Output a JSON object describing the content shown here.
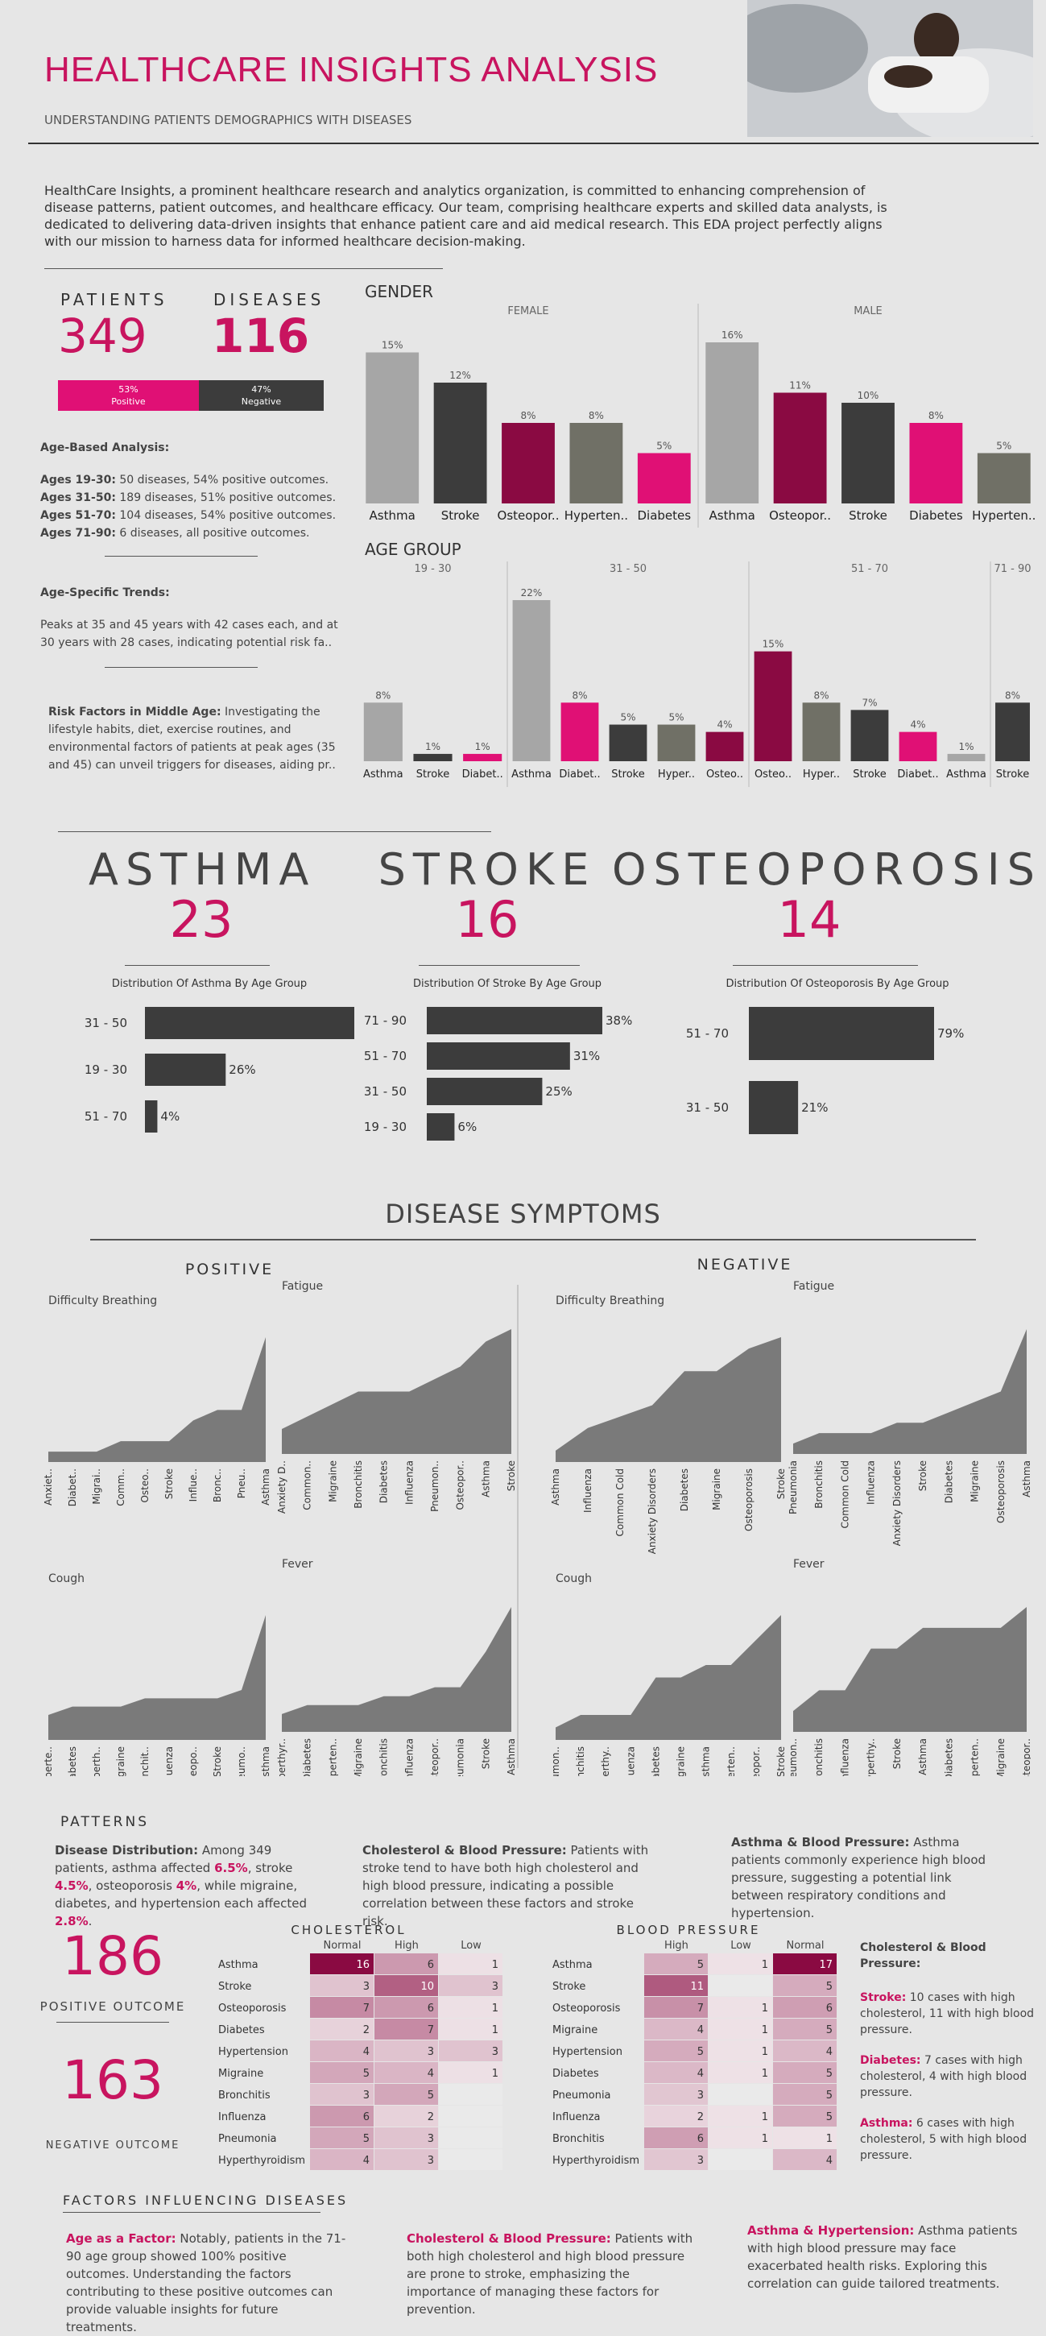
{
  "title": "HEALTHCARE INSIGHTS ANALYSIS",
  "subtitle": "UNDERSTANDING PATIENTS DEMOGRAPHICS WITH DISEASES",
  "intro": "HealthCare Insights, a prominent healthcare research and analytics organization, is committed to enhancing comprehension of disease patterns, patient outcomes, and healthcare efficacy. Our team, comprising healthcare experts and skilled data analysts, is dedicated to delivering data-driven insights that enhance patient care and aid medical research. This EDA project perfectly aligns with our mission to harness data for informed healthcare decision-making.",
  "kpis": {
    "patients_label": "PATIENTS",
    "patients_value": "349",
    "diseases_label": "DISEASES",
    "diseases_value": "116",
    "positive_pct": "53%",
    "positive_label": "Positive",
    "negative_pct": "47%",
    "negative_label": "Negative",
    "positive_share": 0.53
  },
  "age_analysis": {
    "heading": "Age-Based Analysis:",
    "lines": [
      {
        "label": "Ages 19-30:",
        "text": " 50 diseases, 54% positive outcomes."
      },
      {
        "label": "Ages 31-50:",
        "text": " 189 diseases, 51% positive outcomes."
      },
      {
        "label": "Ages 51-70:",
        "text": " 104 diseases, 54% positive outcomes."
      },
      {
        "label": "Ages 71-90:",
        "text": " 6 diseases, all positive outcomes."
      }
    ]
  },
  "age_trends": {
    "heading": "Age-Specific Trends:",
    "line1": "Peaks at 35 and 45 years with 42 cases each, and at",
    "line2": "30 years with 28 cases, indicating potential risk fa.."
  },
  "risk_factors": {
    "label": "Risk Factors in Middle Age:",
    "text1": " Investigating the",
    "line2": "lifestyle habits, diet, exercise routines, and",
    "line3": "environmental factors of patients at peak ages (35",
    "line4": "and 45) can unveil triggers for diseases, aiding pr.."
  },
  "colors": {
    "magenta": "#c8145f",
    "dark": "#3c3c3c",
    "grey": "#a6a6a6",
    "olive": "#707066",
    "maroon": "#8a0a42",
    "pink": "#e01075"
  },
  "chart_data": [
    {
      "type": "bar",
      "title": "GENDER",
      "panels": [
        {
          "name": "FEMALE",
          "categories": [
            "Asthma",
            "Stroke",
            "Osteopor..",
            "Hyperten..",
            "Diabetes"
          ],
          "values": [
            15,
            12,
            8,
            8,
            5
          ],
          "colors": [
            "grey",
            "dark",
            "maroon",
            "olive",
            "pink"
          ]
        },
        {
          "name": "MALE",
          "categories": [
            "Asthma",
            "Osteopor..",
            "Stroke",
            "Diabetes",
            "Hyperten.."
          ],
          "values": [
            16,
            11,
            10,
            8,
            5
          ],
          "colors": [
            "grey",
            "maroon",
            "dark",
            "pink",
            "olive"
          ]
        }
      ],
      "unit": "%"
    },
    {
      "type": "bar",
      "title": "AGE GROUP",
      "panels": [
        {
          "name": "19 - 30",
          "categories": [
            "Asthma",
            "Stroke",
            "Diabet.."
          ],
          "values": [
            8,
            1,
            1
          ],
          "colors": [
            "grey",
            "dark",
            "pink"
          ]
        },
        {
          "name": "31 - 50",
          "categories": [
            "Asthma",
            "Diabet..",
            "Stroke",
            "Hyper..",
            "Osteo.."
          ],
          "values": [
            22,
            8,
            5,
            5,
            4
          ],
          "colors": [
            "grey",
            "pink",
            "dark",
            "olive",
            "maroon"
          ]
        },
        {
          "name": "51 - 70",
          "categories": [
            "Osteo..",
            "Hyper..",
            "Stroke",
            "Diabet..",
            "Asthma"
          ],
          "values": [
            15,
            8,
            7,
            4,
            1
          ],
          "colors": [
            "maroon",
            "olive",
            "dark",
            "pink",
            "grey"
          ]
        },
        {
          "name": "71 - 90",
          "categories": [
            "Stroke"
          ],
          "values": [
            8
          ],
          "colors": [
            "dark"
          ]
        }
      ],
      "unit": "%"
    },
    {
      "type": "bar",
      "title": "Distribution Of Asthma By Age Group",
      "categories": [
        "31 - 50",
        "19 - 30",
        "51 - 70"
      ],
      "values": [
        70,
        26,
        4
      ],
      "unit": "%"
    },
    {
      "type": "bar",
      "title": "Distribution Of Stroke By Age Group",
      "categories": [
        "71 - 90",
        "51 - 70",
        "31 - 50",
        "19 - 30"
      ],
      "values": [
        38,
        31,
        25,
        6
      ],
      "unit": "%"
    },
    {
      "type": "bar",
      "title": "Distribution Of Osteoporosis By Age Group",
      "categories": [
        "51 - 70",
        "31 - 50"
      ],
      "values": [
        79,
        21
      ],
      "unit": "%"
    },
    {
      "type": "area",
      "title": "DISEASE SYMPTOMS",
      "groups": [
        {
          "name": "POSITIVE",
          "charts": [
            {
              "title": "Difficulty Breathing",
              "categories": [
                "Anxiet..",
                "Diabet..",
                "Migrai..",
                "Comm..",
                "Osteo..",
                "Stroke",
                "Influe..",
                "Bronc..",
                "Pneu..",
                "Asthma"
              ],
              "values": [
                1,
                1,
                1,
                2,
                2,
                2,
                4,
                5,
                5,
                12
              ]
            },
            {
              "title": "Fatigue",
              "categories": [
                "Anxiety D..",
                "Common..",
                "Migraine",
                "Bronchitis",
                "Diabetes",
                "Influenza",
                "Pneumon..",
                "Osteopor..",
                "Asthma",
                "Stroke"
              ],
              "values": [
                2,
                3,
                4,
                5,
                5,
                5,
                6,
                7,
                9,
                10
              ]
            },
            {
              "title": "Cough",
              "categories": [
                "Hyperte..",
                "Diabetes",
                "Hyperth..",
                "Migraine",
                "Bronchit..",
                "Influenza",
                "Osteopo..",
                "Stroke",
                "Pneumo..",
                "Asthma"
              ],
              "values": [
                3,
                4,
                4,
                4,
                5,
                5,
                5,
                5,
                6,
                15
              ]
            },
            {
              "title": "Fever",
              "categories": [
                "Hyperthyr..",
                "Diabetes",
                "Hyperten..",
                "Migraine",
                "Bronchitis",
                "Influenza",
                "Osteopor..",
                "Pneumonia",
                "Stroke",
                "Asthma"
              ],
              "values": [
                2,
                3,
                3,
                3,
                4,
                4,
                5,
                5,
                9,
                14
              ]
            }
          ]
        },
        {
          "name": "NEGATIVE",
          "charts": [
            {
              "title": "Difficulty Breathing",
              "categories": [
                "Asthma",
                "Influenza",
                "Common Cold",
                "Anxiety Disorders",
                "Diabetes",
                "Migraine",
                "Osteoporosis",
                "Stroke"
              ],
              "values": [
                1,
                3,
                4,
                5,
                8,
                8,
                10,
                11
              ]
            },
            {
              "title": "Fatigue",
              "categories": [
                "Pneumonia",
                "Bronchitis",
                "Common Cold",
                "Influenza",
                "Anxiety Disorders",
                "Stroke",
                "Diabetes",
                "Migraine",
                "Osteoporosis",
                "Asthma"
              ],
              "values": [
                1,
                2,
                2,
                2,
                3,
                3,
                4,
                5,
                6,
                12
              ]
            },
            {
              "title": "Cough",
              "categories": [
                "Pneumon..",
                "Bronchitis",
                "Hyperthy..",
                "Influenza",
                "Diabetes",
                "Migraine",
                "Asthma",
                "Hyperten..",
                "Osteopor..",
                "Stroke"
              ],
              "values": [
                1,
                2,
                2,
                2,
                5,
                5,
                6,
                6,
                8,
                10
              ]
            },
            {
              "title": "Fever",
              "categories": [
                "Pneumon..",
                "Bronchitis",
                "Influenza",
                "Hyperthy..",
                "Stroke",
                "Asthma",
                "Diabetes",
                "Hyperten..",
                "Migraine",
                "Osteopor.."
              ],
              "values": [
                1,
                2,
                2,
                4,
                4,
                5,
                5,
                5,
                5,
                6
              ]
            }
          ]
        }
      ]
    },
    {
      "type": "heatmap",
      "title": "CHOLESTEROL",
      "columns": [
        "Normal",
        "High",
        "Low"
      ],
      "rows": [
        "Asthma",
        "Stroke",
        "Osteoporosis",
        "Diabetes",
        "Hypertension",
        "Migraine",
        "Bronchitis",
        "Influenza",
        "Pneumonia",
        "Hyperthyroidism"
      ],
      "values": [
        [
          16,
          6,
          1
        ],
        [
          3,
          10,
          3
        ],
        [
          7,
          6,
          1
        ],
        [
          2,
          7,
          1
        ],
        [
          4,
          3,
          3
        ],
        [
          5,
          4,
          1
        ],
        [
          3,
          5,
          null
        ],
        [
          6,
          2,
          null
        ],
        [
          5,
          3,
          null
        ],
        [
          4,
          3,
          null
        ]
      ]
    },
    {
      "type": "heatmap",
      "title": "BLOOD PRESSURE",
      "columns": [
        "High",
        "Low",
        "Normal"
      ],
      "rows": [
        "Asthma",
        "Stroke",
        "Osteoporosis",
        "Migraine",
        "Hypertension",
        "Diabetes",
        "Pneumonia",
        "Influenza",
        "Bronchitis",
        "Hyperthyroidism"
      ],
      "values": [
        [
          5,
          1,
          17
        ],
        [
          11,
          null,
          5
        ],
        [
          7,
          1,
          6
        ],
        [
          4,
          1,
          5
        ],
        [
          5,
          1,
          4
        ],
        [
          4,
          1,
          5
        ],
        [
          3,
          null,
          5
        ],
        [
          2,
          1,
          5
        ],
        [
          6,
          1,
          1
        ],
        [
          3,
          null,
          4
        ]
      ]
    }
  ],
  "diseases": [
    {
      "name": "ASTHMA",
      "count": "23"
    },
    {
      "name": "STROKE",
      "count": "16"
    },
    {
      "name": "OSTEOPOROSIS",
      "count": "14"
    }
  ],
  "patterns": {
    "heading": "PATTERNS",
    "p1_label": "Disease Distribution:",
    "p1_t1": " Among 349 patients, asthma affected ",
    "p1_v1": "6.5%",
    "p1_t2": ", stroke ",
    "p1_v2": "4.5%",
    "p1_t3": ", osteoporosis ",
    "p1_v3": "4%",
    "p1_t4": ", while migraine, diabetes, and hypertension each affected ",
    "p1_v4": "2.8%",
    "p1_t5": ".",
    "p2_label": "Cholesterol & Blood Pressure:",
    "p2_text": " Patients with stroke tend to have both high cholesterol and high blood pressure, indicating a possible correlation between these factors and stroke risk.",
    "p3_label": "Asthma & Blood Pressure:",
    "p3_text": " Asthma patients commonly experience high blood pressure, suggesting a potential link between respiratory conditions and hypertension."
  },
  "outcomes": {
    "positive_value": "186",
    "positive_label": "POSITIVE OUTCOME",
    "negative_value": "163",
    "negative_label": "NEGATIVE OUTCOME"
  },
  "chol_bp_notes": {
    "heading": "Cholesterol & Blood Pressure:",
    "n1_label": "Stroke:",
    "n1_text": " 10 cases with high cholesterol, 11 with high blood pressure.",
    "n2_label": "Diabetes:",
    "n2_text": " 7 cases with high cholesterol, 4 with high blood pressure.",
    "n3_label": "Asthma:",
    "n3_text": " 6 cases with high cholesterol, 5 with high blood pressure."
  },
  "factors": {
    "heading": "FACTORS INFLUENCING DISEASES",
    "f1_label": "Age as a Factor:",
    "f1_text": " Notably, patients in the 71-90 age group showed 100% positive outcomes. Understanding the factors contributing to these positive outcomes can provide valuable insights for future treatments.",
    "f2_label": "Cholesterol & Blood Pressure:",
    "f2_text": " Patients with both high cholesterol and high blood pressure are prone to stroke, emphasizing the importance of managing these factors for prevention.",
    "f3_label": "Asthma & Hypertension:",
    "f3_text": " Asthma patients with high blood pressure may face exacerbated health risks. Exploring this correlation can guide tailored treatments."
  }
}
